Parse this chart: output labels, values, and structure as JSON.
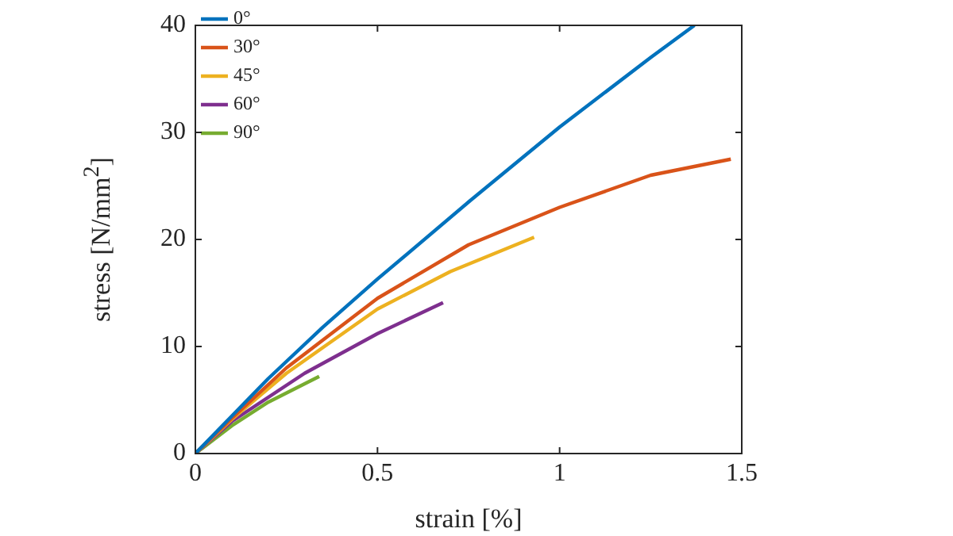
{
  "chart_data": {
    "type": "line",
    "xlabel": "strain [%]",
    "ylabel": "stress [N/mm$^{2}$]",
    "xlim": [
      0,
      1.5
    ],
    "xticks": [
      0,
      0.5,
      1,
      1.5
    ],
    "ylim": [
      0,
      40
    ],
    "yticks": [
      0,
      10,
      20,
      30,
      40
    ],
    "grid": false,
    "legend": "top left",
    "marker": "none",
    "line_style": "solid",
    "series": [
      {
        "name": "0°",
        "color": "#0072bd",
        "x": [
          0,
          0.1,
          0.2,
          0.35,
          0.5,
          0.75,
          1.0,
          1.25,
          1.37
        ],
        "values": [
          0,
          3.5,
          7,
          11.8,
          16.3,
          23.5,
          30.5,
          37,
          40
        ]
      },
      {
        "name": "30°",
        "color": "#d95319",
        "x": [
          0,
          0.1,
          0.25,
          0.5,
          0.75,
          1.0,
          1.25,
          1.47
        ],
        "values": [
          0,
          3.3,
          8,
          14.5,
          19.5,
          23,
          26,
          27.5
        ]
      },
      {
        "name": "45°",
        "color": "#edb120",
        "x": [
          0,
          0.1,
          0.25,
          0.5,
          0.7,
          0.93
        ],
        "values": [
          0,
          3.2,
          7.5,
          13.5,
          17,
          20.2
        ]
      },
      {
        "name": "60°",
        "color": "#7e2f8e",
        "x": [
          0,
          0.1,
          0.3,
          0.5,
          0.68
        ],
        "values": [
          0,
          3,
          7.5,
          11.2,
          14.1
        ]
      },
      {
        "name": "90°",
        "color": "#77ac30",
        "x": [
          0,
          0.1,
          0.2,
          0.34
        ],
        "values": [
          0,
          2.6,
          4.8,
          7.2
        ]
      }
    ]
  }
}
